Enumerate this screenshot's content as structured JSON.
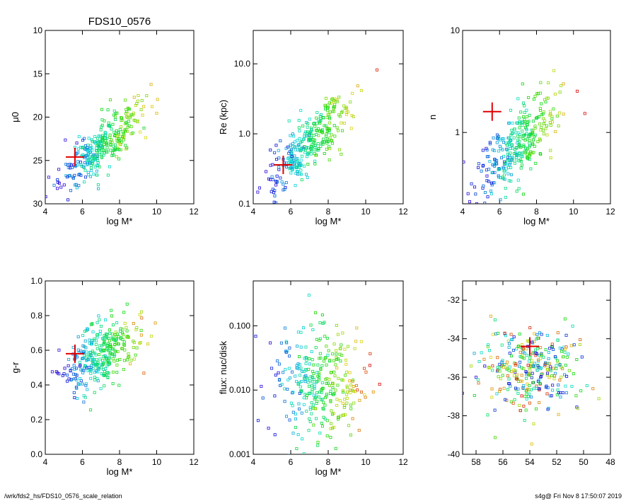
{
  "footer": {
    "path": "/wrk/fds2_hs/FDS10_0576_scale_relation",
    "stamp": "s4g@  Fri Nov  8 17:50:07 2019"
  },
  "chart_data": [
    {
      "type": "scatter",
      "title": "FDS10_0576",
      "xlabel": "log M*",
      "ylabel": "μ0",
      "xlim": [
        4,
        12
      ],
      "ylim": [
        30,
        10
      ],
      "yscale": "linear",
      "xticks": [
        4,
        6,
        8,
        10,
        12
      ],
      "yticks": [
        10,
        15,
        20,
        25,
        30
      ],
      "cloud": {
        "x_center": 7.0,
        "y_center": 23.5,
        "x_spread": 1.1,
        "slope": -1.8,
        "y_scatter": 1.5
      },
      "target": {
        "x": 5.6,
        "y": 24.6
      }
    },
    {
      "type": "scatter",
      "title": "",
      "xlabel": "log M*",
      "ylabel": "Re (kpc)",
      "xlim": [
        4,
        12
      ],
      "ylim": [
        0.1,
        30
      ],
      "yscale": "log",
      "xticks": [
        4,
        6,
        8,
        10,
        12
      ],
      "yticks": [
        0.1,
        1.0,
        10.0
      ],
      "ytick_labels": [
        "0.1",
        "1.0",
        "10.0"
      ],
      "cloud": {
        "x_center": 7.0,
        "y_center": -0.15,
        "x_spread": 1.1,
        "slope": 0.25,
        "y_scatter": 0.2
      },
      "target": {
        "x": 5.6,
        "y": 0.36
      }
    },
    {
      "type": "scatter",
      "title": "",
      "xlabel": "log M*",
      "ylabel": "n",
      "xlim": [
        4,
        12
      ],
      "ylim": [
        0.2,
        10
      ],
      "yscale": "log",
      "xticks": [
        4,
        6,
        8,
        10,
        12
      ],
      "yticks": [
        1,
        10
      ],
      "ytick_labels": [
        "1",
        "10"
      ],
      "cloud": {
        "x_center": 7.0,
        "y_center": -0.1,
        "x_spread": 1.1,
        "slope": 0.15,
        "y_scatter": 0.17
      },
      "target": {
        "x": 5.6,
        "y": 1.6
      }
    },
    {
      "type": "scatter",
      "title": "",
      "xlabel": "log M*",
      "ylabel": "g-r",
      "xlim": [
        4,
        12
      ],
      "ylim": [
        0.0,
        1.0
      ],
      "yscale": "linear",
      "xticks": [
        4,
        6,
        8,
        10,
        12
      ],
      "yticks": [
        0.0,
        0.2,
        0.4,
        0.6,
        0.8,
        1.0
      ],
      "ytick_labels": [
        "0.0",
        "0.2",
        "0.4",
        "0.6",
        "0.8",
        "1.0"
      ],
      "cloud": {
        "x_center": 7.0,
        "y_center": 0.57,
        "x_spread": 1.1,
        "slope": 0.05,
        "y_scatter": 0.1
      },
      "target": {
        "x": 5.6,
        "y": 0.58
      }
    },
    {
      "type": "scatter",
      "title": "",
      "xlabel": "log M*",
      "ylabel": "flux: nuc/disk",
      "xlim": [
        4,
        12
      ],
      "ylim": [
        0.001,
        0.5
      ],
      "yscale": "log",
      "xticks": [
        4,
        6,
        8,
        10,
        12
      ],
      "yticks": [
        0.001,
        0.01,
        0.1
      ],
      "ytick_labels": [
        "0.001",
        "0.010",
        "0.100"
      ],
      "cloud": {
        "x_center": 7.5,
        "y_center": -1.9,
        "x_spread": 1.2,
        "slope": 0.0,
        "y_scatter": 0.45
      },
      "target": null
    },
    {
      "type": "scatter",
      "title": "",
      "xlabel": "",
      "ylabel": "",
      "xlim": [
        59,
        48
      ],
      "ylim": [
        -40,
        -31
      ],
      "yscale": "linear",
      "xticks": [
        58,
        56,
        54,
        52,
        50,
        48
      ],
      "yticks": [
        -32,
        -34,
        -36,
        -38,
        -40
      ],
      "cloud": {
        "x_center": 54.0,
        "y_center": -35.5,
        "x_spread": 2.0,
        "slope": 0.0,
        "y_scatter": 1.1
      },
      "target": {
        "x": 54.0,
        "y": -34.4
      }
    }
  ]
}
